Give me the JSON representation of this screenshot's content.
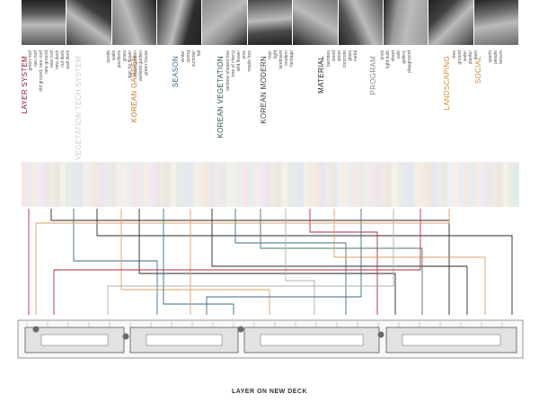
{
  "footer_title": "LAYER ON NEW DECK",
  "categories": [
    {
      "label": "LAYER SYSTEM",
      "color": "#8b1a2b"
    },
    {
      "label": "VEGETATION TECH SYSTEM",
      "color": "#c9cfc9"
    },
    {
      "label": "KOREAN GARDEN",
      "color": "#c8782a"
    },
    {
      "label": "SEASON",
      "color": "#3d6a8a"
    },
    {
      "label": "KOREAN VEGETATION",
      "color": "#2f4f3f"
    },
    {
      "label": "KOREAN MODERN",
      "color": "#3a3a3a"
    },
    {
      "label": "MATERIAL",
      "color": "#222222"
    },
    {
      "label": "PROGRAM",
      "color": "#8a8a8a"
    },
    {
      "label": "LANDSCAPING",
      "color": "#d4902a"
    },
    {
      "label": "SOCIAL",
      "color": "#cc8a3a"
    }
  ],
  "items": {
    "layer_system": [
      "green roof",
      "rain roof",
      "old ground, new roof",
      "new ground",
      "new roof",
      "new deck",
      "nut deck",
      "wall deck"
    ],
    "korean_garden": [
      "ponds",
      "walls",
      "pavilions",
      "grass",
      "stair for flower",
      "stone garden",
      "wetland garden",
      "green house"
    ],
    "season": [
      "winter",
      "spring",
      "summer",
      "fall"
    ],
    "korean_vegetation": [
      "rainbow shaped tree",
      "tree of cherry",
      "wild flower",
      "pine",
      "maple tree"
    ],
    "korean_modern": [
      "river",
      "light",
      "landmark",
      "modern",
      "heritage"
    ],
    "material": [
      "bamboo",
      "wood",
      "stone",
      "concrete",
      "glass",
      "metal"
    ],
    "program": [
      "brick",
      "light bulb",
      "street",
      "cafe",
      "gallery",
      "playground"
    ],
    "landscaping": [
      "tree",
      "ground",
      "water",
      "planter",
      "lawn"
    ],
    "social": [
      "sports",
      "people",
      "leisure"
    ]
  },
  "colors": {
    "red": "#b5283c",
    "blue": "#3d6a8a",
    "orange": "#e0a060",
    "dark": "#2a2a2a",
    "grey": "#b0b0b0",
    "green": "#4d7a5a"
  }
}
